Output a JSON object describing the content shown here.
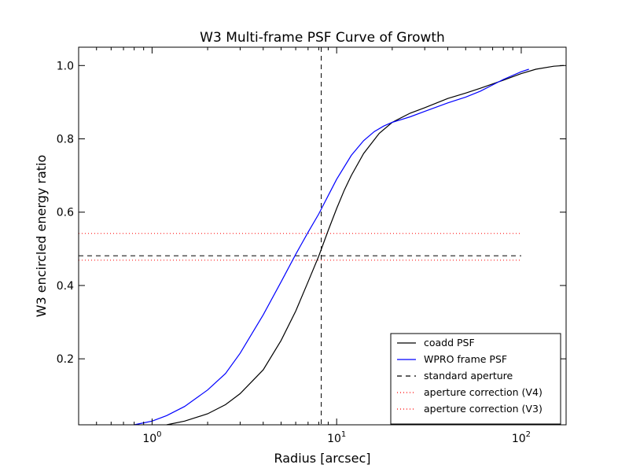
{
  "chart_data": {
    "type": "line",
    "title": "W3 Multi-frame PSF Curve of Growth",
    "xlabel": "Radius [arcsec]",
    "ylabel": "W3 encircled energy ratio",
    "xscale": "log",
    "xlim": [
      0.4,
      175
    ],
    "ylim": [
      0.02,
      1.05
    ],
    "xticks": [
      {
        "value": 1,
        "base": "10",
        "exp": "0"
      },
      {
        "value": 10,
        "base": "10",
        "exp": "1"
      },
      {
        "value": 100,
        "base": "10",
        "exp": "2"
      }
    ],
    "yticks": [
      {
        "value": 0.2,
        "label": "0.2"
      },
      {
        "value": 0.4,
        "label": "0.4"
      },
      {
        "value": 0.6,
        "label": "0.6"
      },
      {
        "value": 0.8,
        "label": "0.8"
      },
      {
        "value": 1.0,
        "label": "1.0"
      }
    ],
    "grid": false,
    "legend_position": "bottom-right",
    "series": [
      {
        "name": "coadd PSF",
        "color": "#000000",
        "style": "solid",
        "x": [
          1.2,
          1.5,
          2.0,
          2.5,
          3.0,
          4.0,
          5.0,
          6.0,
          7.0,
          8.0,
          9.0,
          10.0,
          11.0,
          12.0,
          14.0,
          17.0,
          20.0,
          25.0,
          30.0,
          40.0,
          50.0,
          60.0,
          80.0,
          100.0,
          120.0,
          150.0,
          170.0
        ],
        "y": [
          0.02,
          0.03,
          0.05,
          0.075,
          0.105,
          0.17,
          0.25,
          0.33,
          0.41,
          0.48,
          0.55,
          0.61,
          0.66,
          0.7,
          0.76,
          0.815,
          0.845,
          0.87,
          0.885,
          0.91,
          0.925,
          0.938,
          0.96,
          0.978,
          0.99,
          0.998,
          1.0
        ]
      },
      {
        "name": "WPRO frame PSF",
        "color": "#0000ff",
        "style": "solid",
        "x": [
          0.8,
          1.0,
          1.2,
          1.5,
          2.0,
          2.5,
          3.0,
          4.0,
          5.0,
          6.0,
          7.0,
          8.0,
          9.0,
          10.0,
          12.0,
          14.0,
          16.0,
          18.0,
          20.0,
          25.0,
          30.0,
          40.0,
          50.0,
          60.0,
          80.0,
          100.0,
          110.0
        ],
        "y": [
          0.02,
          0.03,
          0.045,
          0.07,
          0.115,
          0.16,
          0.215,
          0.32,
          0.41,
          0.485,
          0.545,
          0.595,
          0.645,
          0.69,
          0.755,
          0.795,
          0.82,
          0.835,
          0.845,
          0.86,
          0.875,
          0.898,
          0.914,
          0.93,
          0.962,
          0.983,
          0.99
        ]
      }
    ],
    "reference_lines": [
      {
        "name": "standard aperture",
        "color": "#000000",
        "style": "dashed",
        "orientation": "vertical",
        "value": 8.25
      },
      {
        "name": "standard aperture",
        "color": "#000000",
        "style": "dashed",
        "orientation": "horizontal",
        "value": 0.481,
        "xmax": 100
      },
      {
        "name": "aperture correction (V4)",
        "color": "#ff0000",
        "style": "dotted",
        "orientation": "horizontal",
        "value": 0.542,
        "xmax": 100
      },
      {
        "name": "aperture correction (V3)",
        "color": "#ff0000",
        "style": "dotted",
        "orientation": "horizontal",
        "value": 0.469,
        "xmax": 100
      }
    ],
    "legend": [
      {
        "label": "coadd PSF",
        "color": "#000000",
        "style": "solid"
      },
      {
        "label": "WPRO frame PSF",
        "color": "#0000ff",
        "style": "solid"
      },
      {
        "label": "standard aperture",
        "color": "#000000",
        "style": "dashed"
      },
      {
        "label": "aperture correction (V4)",
        "color": "#ff0000",
        "style": "dotted"
      },
      {
        "label": "aperture correction (V3)",
        "color": "#ff0000",
        "style": "dotted"
      }
    ]
  }
}
